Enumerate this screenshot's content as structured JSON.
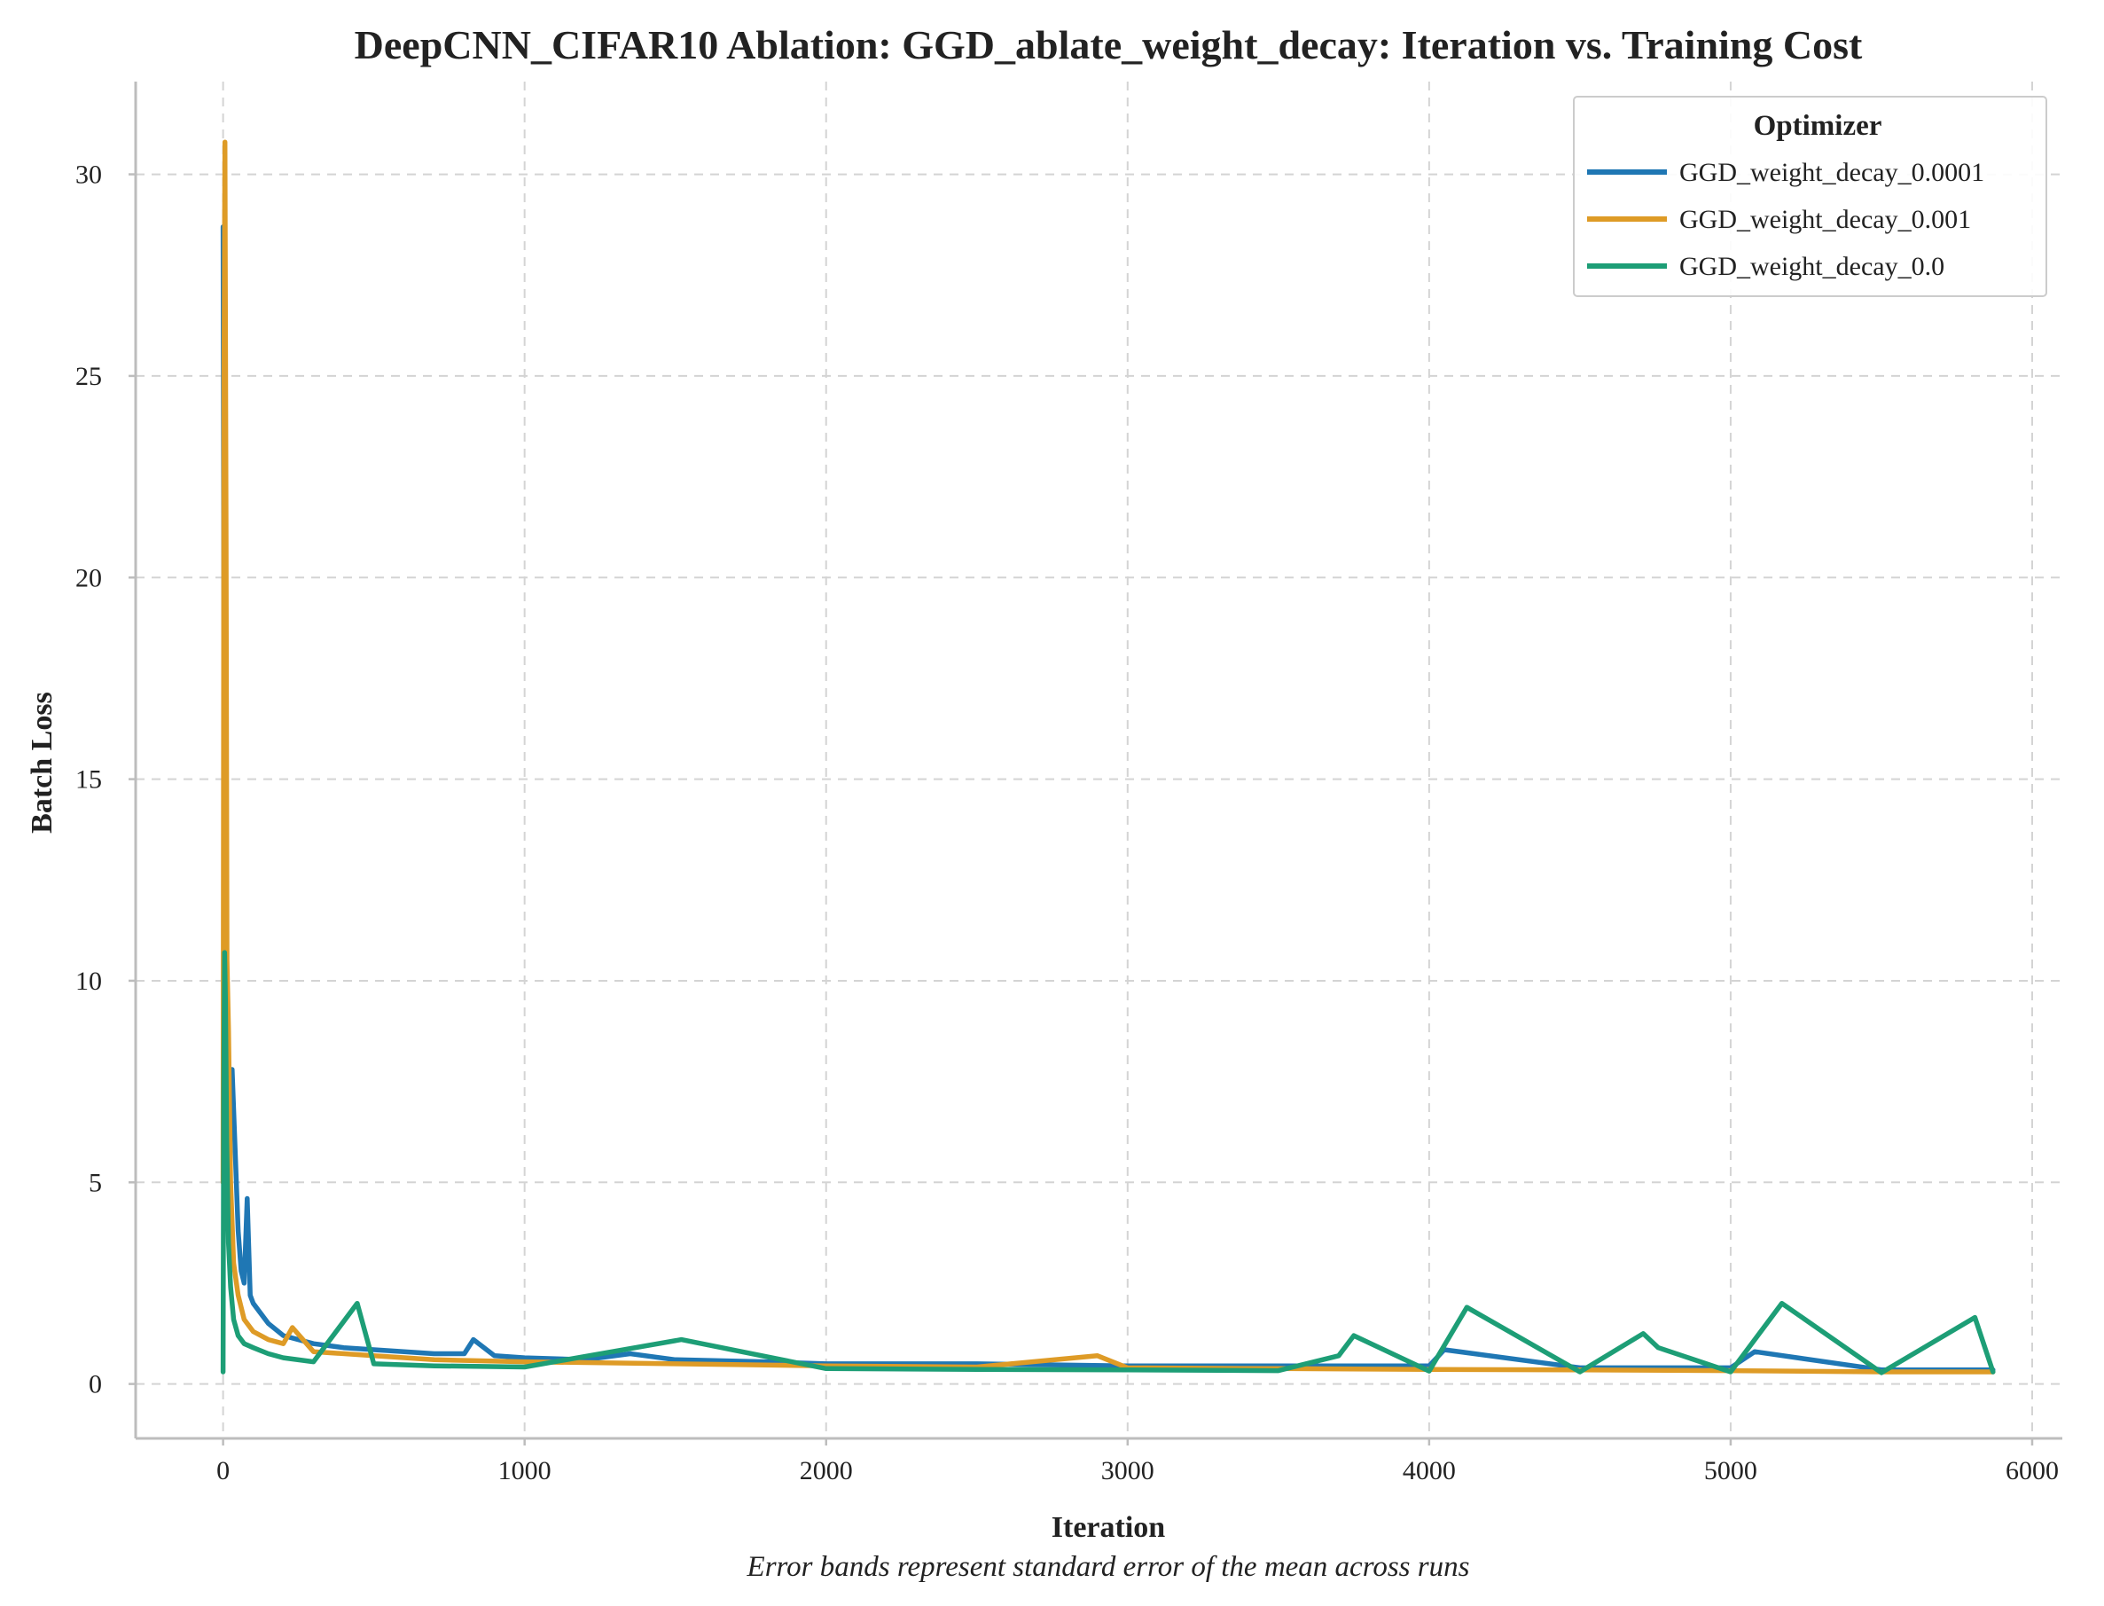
{
  "chart_data": {
    "type": "line",
    "title": "DeepCNN_CIFAR10 Ablation: GGD_ablate_weight_decay: Iteration vs. Training Cost",
    "xlabel": "Iteration",
    "ylabel": "Batch Loss",
    "caption": "Error bands represent standard error of the mean across runs",
    "xlim": [
      -290,
      6100
    ],
    "ylim": [
      -1.35,
      32.3
    ],
    "xticks": [
      0,
      1000,
      2000,
      3000,
      4000,
      5000,
      6000
    ],
    "xtick_labels": [
      "0",
      "1000",
      "2000",
      "3000",
      "4000",
      "5000",
      "6000"
    ],
    "yticks": [
      0,
      5,
      10,
      15,
      20,
      25,
      30
    ],
    "ytick_labels": [
      "0",
      "5",
      "10",
      "15",
      "20",
      "25",
      "30"
    ],
    "grid": true,
    "legend": {
      "title": "Optimizer",
      "placement": "top-right"
    },
    "series": [
      {
        "name": "GGD_weight_decay_0.0001",
        "color": "#1f77b4",
        "x": [
          0,
          3,
          6,
          10,
          15,
          22,
          30,
          40,
          50,
          60,
          70,
          80,
          90,
          100,
          120,
          150,
          200,
          300,
          400,
          500,
          600,
          700,
          800,
          830,
          900,
          1000,
          1200,
          1350,
          1500,
          1800,
          2000,
          2500,
          3000,
          3500,
          4000,
          4050,
          4500,
          5000,
          5080,
          5500,
          5870
        ],
        "y": [
          28.7,
          18.0,
          10.5,
          6.5,
          5.5,
          6.0,
          7.8,
          5.8,
          3.8,
          2.8,
          2.5,
          4.6,
          2.2,
          2.0,
          1.8,
          1.5,
          1.2,
          1.0,
          0.9,
          0.85,
          0.8,
          0.75,
          0.75,
          1.1,
          0.7,
          0.65,
          0.6,
          0.75,
          0.6,
          0.55,
          0.5,
          0.5,
          0.45,
          0.45,
          0.45,
          0.85,
          0.4,
          0.4,
          0.8,
          0.35,
          0.35
        ]
      },
      {
        "name": "GGD_weight_decay_0.001",
        "color": "#de9b26",
        "x": [
          0,
          3,
          6,
          10,
          13,
          18,
          25,
          35,
          50,
          70,
          100,
          150,
          200,
          230,
          300,
          500,
          700,
          1000,
          1500,
          2000,
          2500,
          2900,
          3000,
          3500,
          4000,
          4500,
          5000,
          5500,
          5870
        ],
        "y": [
          5.0,
          25.0,
          30.8,
          20.8,
          10.5,
          8.8,
          5.0,
          3.0,
          2.2,
          1.6,
          1.3,
          1.1,
          1.0,
          1.4,
          0.8,
          0.7,
          0.6,
          0.55,
          0.5,
          0.45,
          0.42,
          0.7,
          0.4,
          0.38,
          0.36,
          0.35,
          0.33,
          0.3,
          0.3
        ]
      },
      {
        "name": "GGD_weight_decay_0.0",
        "color": "#1d9e76",
        "x": [
          0,
          2,
          5,
          8,
          12,
          18,
          25,
          35,
          50,
          70,
          100,
          150,
          200,
          300,
          445,
          500,
          700,
          1000,
          1520,
          2000,
          2500,
          3000,
          3500,
          3700,
          3750,
          4000,
          4125,
          4500,
          4710,
          4760,
          5000,
          5170,
          5500,
          5810,
          5870
        ],
        "y": [
          0.3,
          7.2,
          10.7,
          9.5,
          6.0,
          3.5,
          2.4,
          1.6,
          1.2,
          1.0,
          0.9,
          0.75,
          0.65,
          0.55,
          2.0,
          0.5,
          0.45,
          0.42,
          1.1,
          0.38,
          0.36,
          0.35,
          0.33,
          0.7,
          1.2,
          0.32,
          1.9,
          0.3,
          1.25,
          0.9,
          0.3,
          2.0,
          0.28,
          1.65,
          0.3
        ]
      }
    ]
  }
}
